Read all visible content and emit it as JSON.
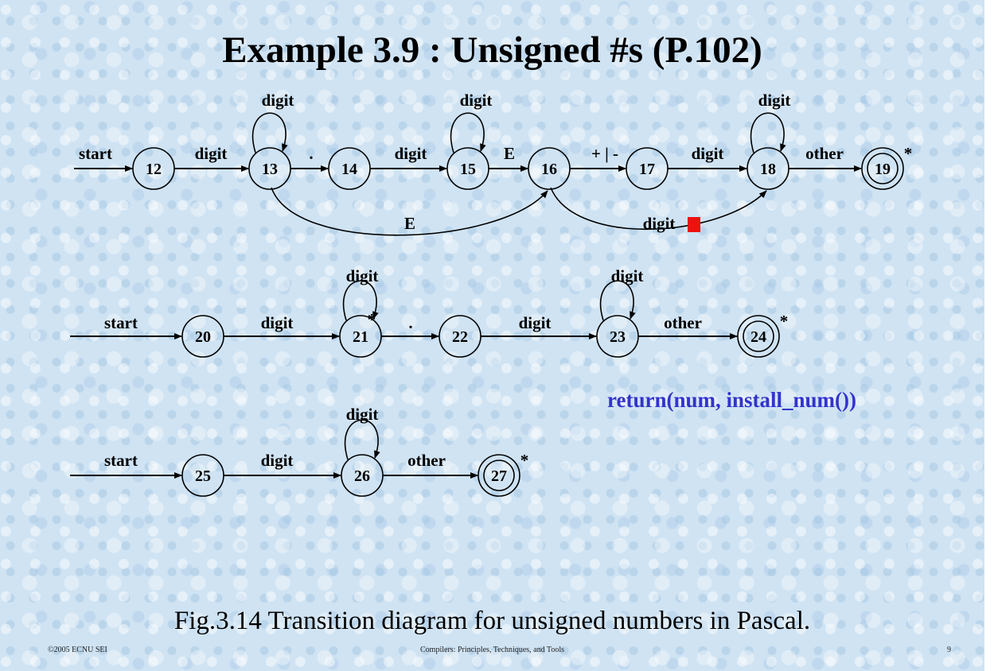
{
  "title": "Example 3.9 : Unsigned #s (P.102)",
  "caption": "Fig.3.14 Transition diagram for unsigned numbers in Pascal.",
  "footer": {
    "left": "©2005 ECNU SEI",
    "center": "Compilers: Principles, Techniques, and Tools",
    "right": "9"
  },
  "colors": {
    "action_text": "#3333cc",
    "marker": "#ee1111"
  },
  "action_text": "return(num, install_num())",
  "diagrams": [
    {
      "states": [
        {
          "id": "12",
          "accepting": false,
          "starred": false
        },
        {
          "id": "13",
          "accepting": false,
          "starred": false
        },
        {
          "id": "14",
          "accepting": false,
          "starred": false
        },
        {
          "id": "15",
          "accepting": false,
          "starred": false
        },
        {
          "id": "16",
          "accepting": false,
          "starred": false
        },
        {
          "id": "17",
          "accepting": false,
          "starred": false
        },
        {
          "id": "18",
          "accepting": false,
          "starred": false
        },
        {
          "id": "19",
          "accepting": true,
          "starred": true
        }
      ],
      "start_label": "start",
      "transitions": [
        {
          "from": "12",
          "to": "13",
          "label": "digit"
        },
        {
          "from": "13",
          "to": "13",
          "label": "digit"
        },
        {
          "from": "13",
          "to": "14",
          "label": "."
        },
        {
          "from": "14",
          "to": "15",
          "label": "digit"
        },
        {
          "from": "15",
          "to": "15",
          "label": "digit"
        },
        {
          "from": "15",
          "to": "16",
          "label": "E"
        },
        {
          "from": "16",
          "to": "17",
          "label": "+ | -"
        },
        {
          "from": "17",
          "to": "18",
          "label": "digit"
        },
        {
          "from": "18",
          "to": "18",
          "label": "digit"
        },
        {
          "from": "18",
          "to": "19",
          "label": "other"
        },
        {
          "from": "13",
          "to": "16",
          "label": "E"
        },
        {
          "from": "16",
          "to": "18",
          "label": "digit"
        }
      ]
    },
    {
      "states": [
        {
          "id": "20",
          "accepting": false,
          "starred": false
        },
        {
          "id": "21",
          "accepting": false,
          "starred": true
        },
        {
          "id": "22",
          "accepting": false,
          "starred": false
        },
        {
          "id": "23",
          "accepting": false,
          "starred": false
        },
        {
          "id": "24",
          "accepting": true,
          "starred": true
        }
      ],
      "start_label": "start",
      "transitions": [
        {
          "from": "20",
          "to": "21",
          "label": "digit"
        },
        {
          "from": "21",
          "to": "21",
          "label": "digit"
        },
        {
          "from": "21",
          "to": "22",
          "label": "."
        },
        {
          "from": "22",
          "to": "23",
          "label": "digit"
        },
        {
          "from": "23",
          "to": "23",
          "label": "digit"
        },
        {
          "from": "23",
          "to": "24",
          "label": "other"
        }
      ]
    },
    {
      "states": [
        {
          "id": "25",
          "accepting": false,
          "starred": false
        },
        {
          "id": "26",
          "accepting": false,
          "starred": false
        },
        {
          "id": "27",
          "accepting": true,
          "starred": true
        }
      ],
      "start_label": "start",
      "transitions": [
        {
          "from": "25",
          "to": "26",
          "label": "digit"
        },
        {
          "from": "26",
          "to": "26",
          "label": "digit"
        },
        {
          "from": "26",
          "to": "27",
          "label": "other"
        }
      ]
    }
  ],
  "star_symbol": "*"
}
